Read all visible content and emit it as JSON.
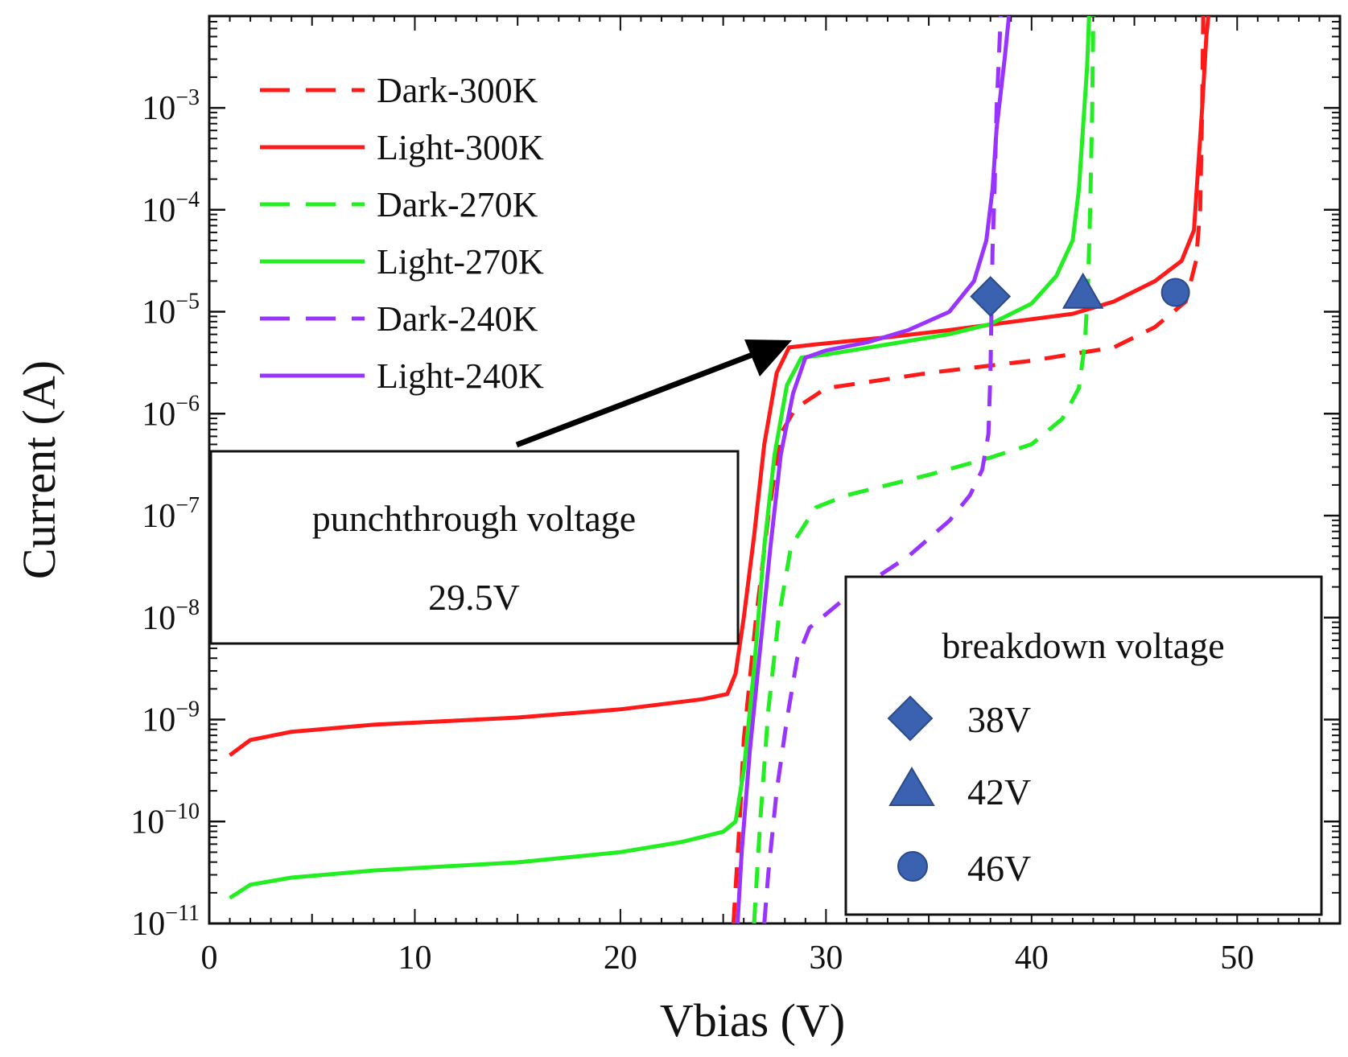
{
  "chart_data": {
    "type": "line",
    "xlabel": "Vbias (V)",
    "ylabel": "Current (A)",
    "xlim": [
      0,
      55
    ],
    "ylim_log10": [
      -11,
      -2.1
    ],
    "y_scale": "log",
    "x_ticks": [
      0,
      10,
      20,
      30,
      40,
      50
    ],
    "x_tick_labels": [
      "0",
      "10",
      "20",
      "30",
      "40",
      "50"
    ],
    "y_ticks_exp": [
      -11,
      -10,
      -9,
      -8,
      -7,
      -6,
      -5,
      -4,
      -3
    ],
    "y_tick_base": "10",
    "y_tick_exps": [
      "−11",
      "−10",
      "−9",
      "−8",
      "−7",
      "−6",
      "−5",
      "−4",
      "−3"
    ],
    "grid": false,
    "legend_position": "top-left",
    "series": [
      {
        "name": "Dark-300K",
        "color": "#ff1a1a",
        "style": "dashed",
        "points": [
          [
            25.5,
            -11
          ],
          [
            25.8,
            -10
          ],
          [
            26.0,
            -9.2
          ],
          [
            26.3,
            -8.6
          ],
          [
            26.6,
            -8.0
          ],
          [
            27.2,
            -7.0
          ],
          [
            27.8,
            -6.2
          ],
          [
            28.5,
            -5.95
          ],
          [
            30,
            -5.75
          ],
          [
            35,
            -5.6
          ],
          [
            40,
            -5.48
          ],
          [
            44,
            -5.35
          ],
          [
            46,
            -5.15
          ],
          [
            47.5,
            -4.9
          ],
          [
            48.0,
            -4.5
          ],
          [
            48.2,
            -4.0
          ],
          [
            48.3,
            -3.0
          ],
          [
            48.35,
            -2.1
          ]
        ]
      },
      {
        "name": "Light-300K",
        "color": "#ff1a1a",
        "style": "solid",
        "points": [
          [
            1,
            -9.35
          ],
          [
            2,
            -9.2
          ],
          [
            4,
            -9.12
          ],
          [
            8,
            -9.05
          ],
          [
            15,
            -8.98
          ],
          [
            20,
            -8.9
          ],
          [
            24,
            -8.8
          ],
          [
            25.2,
            -8.75
          ],
          [
            25.6,
            -8.55
          ],
          [
            26.0,
            -8.0
          ],
          [
            26.5,
            -7.2
          ],
          [
            27.0,
            -6.3
          ],
          [
            27.6,
            -5.6
          ],
          [
            28.2,
            -5.35
          ],
          [
            29.5,
            -5.32
          ],
          [
            33,
            -5.25
          ],
          [
            36,
            -5.18
          ],
          [
            39,
            -5.1
          ],
          [
            42,
            -5.02
          ],
          [
            44,
            -4.9
          ],
          [
            46,
            -4.7
          ],
          [
            47.3,
            -4.5
          ],
          [
            47.9,
            -4.2
          ],
          [
            48.1,
            -3.6
          ],
          [
            48.3,
            -3.0
          ],
          [
            48.5,
            -2.3
          ],
          [
            48.6,
            -2.1
          ]
        ]
      },
      {
        "name": "Dark-270K",
        "color": "#22ee22",
        "style": "dashed",
        "points": [
          [
            26.5,
            -11
          ],
          [
            26.8,
            -10
          ],
          [
            27.2,
            -8.9
          ],
          [
            27.7,
            -8.0
          ],
          [
            28.3,
            -7.3
          ],
          [
            29.5,
            -6.92
          ],
          [
            31,
            -6.8
          ],
          [
            35,
            -6.6
          ],
          [
            38,
            -6.43
          ],
          [
            40,
            -6.3
          ],
          [
            41.5,
            -6.05
          ],
          [
            42.3,
            -5.75
          ],
          [
            42.6,
            -5.3
          ],
          [
            42.75,
            -4.7
          ],
          [
            42.85,
            -4.0
          ],
          [
            42.95,
            -3.0
          ],
          [
            43.0,
            -2.1
          ]
        ]
      },
      {
        "name": "Light-270K",
        "color": "#22ee22",
        "style": "solid",
        "points": [
          [
            1,
            -10.75
          ],
          [
            2,
            -10.62
          ],
          [
            4,
            -10.55
          ],
          [
            8,
            -10.48
          ],
          [
            15,
            -10.4
          ],
          [
            20,
            -10.3
          ],
          [
            23,
            -10.2
          ],
          [
            25,
            -10.1
          ],
          [
            25.6,
            -10.0
          ],
          [
            26.0,
            -9.5
          ],
          [
            26.5,
            -8.5
          ],
          [
            27.0,
            -7.3
          ],
          [
            27.5,
            -6.4
          ],
          [
            28.1,
            -5.72
          ],
          [
            28.8,
            -5.45
          ],
          [
            30,
            -5.42
          ],
          [
            33,
            -5.32
          ],
          [
            36,
            -5.22
          ],
          [
            38,
            -5.12
          ],
          [
            40,
            -4.92
          ],
          [
            41.2,
            -4.65
          ],
          [
            42.0,
            -4.3
          ],
          [
            42.3,
            -3.8
          ],
          [
            42.5,
            -3.2
          ],
          [
            42.7,
            -2.6
          ],
          [
            42.8,
            -2.1
          ]
        ]
      },
      {
        "name": "Dark-240K",
        "color": "#9933ff",
        "style": "dashed",
        "points": [
          [
            27.0,
            -11
          ],
          [
            27.2,
            -10.5
          ],
          [
            27.6,
            -9.7
          ],
          [
            28.1,
            -9.0
          ],
          [
            28.6,
            -8.4
          ],
          [
            29.2,
            -8.1
          ],
          [
            31,
            -7.8
          ],
          [
            34,
            -7.4
          ],
          [
            36,
            -7.05
          ],
          [
            37,
            -6.8
          ],
          [
            37.6,
            -6.55
          ],
          [
            37.9,
            -6.2
          ],
          [
            38.0,
            -5.6
          ],
          [
            38.05,
            -5.0
          ],
          [
            38.1,
            -4.4
          ],
          [
            38.2,
            -3.8
          ],
          [
            38.3,
            -3.0
          ],
          [
            38.5,
            -2.1
          ]
        ]
      },
      {
        "name": "Light-240K",
        "color": "#9933ff",
        "style": "solid",
        "points": [
          [
            25.7,
            -11
          ],
          [
            25.9,
            -10.3
          ],
          [
            26.3,
            -9.3
          ],
          [
            26.8,
            -8.3
          ],
          [
            27.3,
            -7.3
          ],
          [
            27.8,
            -6.4
          ],
          [
            28.4,
            -5.8
          ],
          [
            29.0,
            -5.45
          ],
          [
            30,
            -5.38
          ],
          [
            32,
            -5.3
          ],
          [
            34,
            -5.18
          ],
          [
            36,
            -5.0
          ],
          [
            37.2,
            -4.7
          ],
          [
            37.8,
            -4.3
          ],
          [
            38.1,
            -3.8
          ],
          [
            38.3,
            -3.2
          ],
          [
            38.7,
            -2.5
          ],
          [
            38.9,
            -2.1
          ]
        ]
      }
    ],
    "annotations": [
      {
        "text_lines": [
          "punchthrough voltage",
          "29.5V"
        ],
        "arrow_to": [
          28.6,
          -5.28
        ]
      },
      {
        "title": "breakdown voltage",
        "markers": [
          {
            "symbol": "diamond",
            "label": "38V",
            "x": 38,
            "y_log10": -4.85
          },
          {
            "symbol": "triangle",
            "label": "42V",
            "x": 42.5,
            "y_log10": -4.82
          },
          {
            "symbol": "circle",
            "label": "46V",
            "x": 47,
            "y_log10": -4.81
          }
        ],
        "marker_color": "#3a62b0"
      }
    ]
  }
}
